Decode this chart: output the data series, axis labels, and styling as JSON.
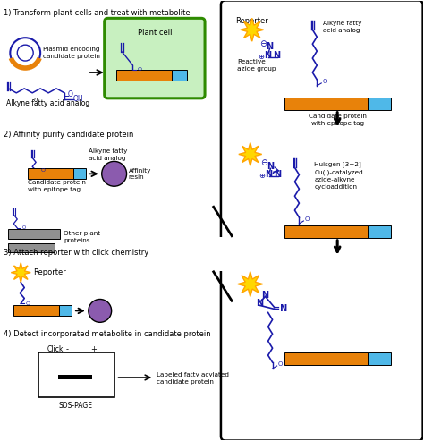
{
  "bg_color": "#ffffff",
  "blue": "#1a1aaa",
  "orange": "#E8820A",
  "cyan": "#4FB8E8",
  "purple": "#8B5BAE",
  "yellow": "#FFD700",
  "yellow_edge": "#FFA500",
  "green_edge": "#2E8B00",
  "light_green": "#C8F0C0",
  "gray": "#909090",
  "black": "#000000",
  "label1": "1) Transform plant cells and treat with metabolite",
  "label2": "2) Affinity purify candidate protein",
  "label3": "3) Attach reporter with click chemistry",
  "label4": "4) Detect incorporated metabolite in candidate protein",
  "txt_reporter": "Reporter",
  "txt_alkyne": "Alkyne fatty\nacid analog",
  "txt_reactive": "Reactive\nazide group",
  "txt_candidate": "Candidate protein\nwith epitope tag",
  "txt_huisgen": "Huisgen [3+2]\nCu(I)-catalyzed\nazide-alkyne\ncycloaddition",
  "txt_sdspage": "SDS-PAGE",
  "txt_click": "Click",
  "txt_minus": "-",
  "txt_plus": "+",
  "txt_labeled": "Labeled fatty acylated\ncandidate protein",
  "txt_plasmid": "Plasmid encoding\ncandidate protein",
  "txt_alkyne_fa": "Alkyne fatty acid analog",
  "txt_plant": "Plant cell",
  "txt_affinity": "Affinity\nresin",
  "txt_alkyne2": "Alkyne fatty\nacid analog",
  "txt_candidate2": "Candidate protein\nwith epitope tag",
  "txt_other": "Other plant\nproteins"
}
